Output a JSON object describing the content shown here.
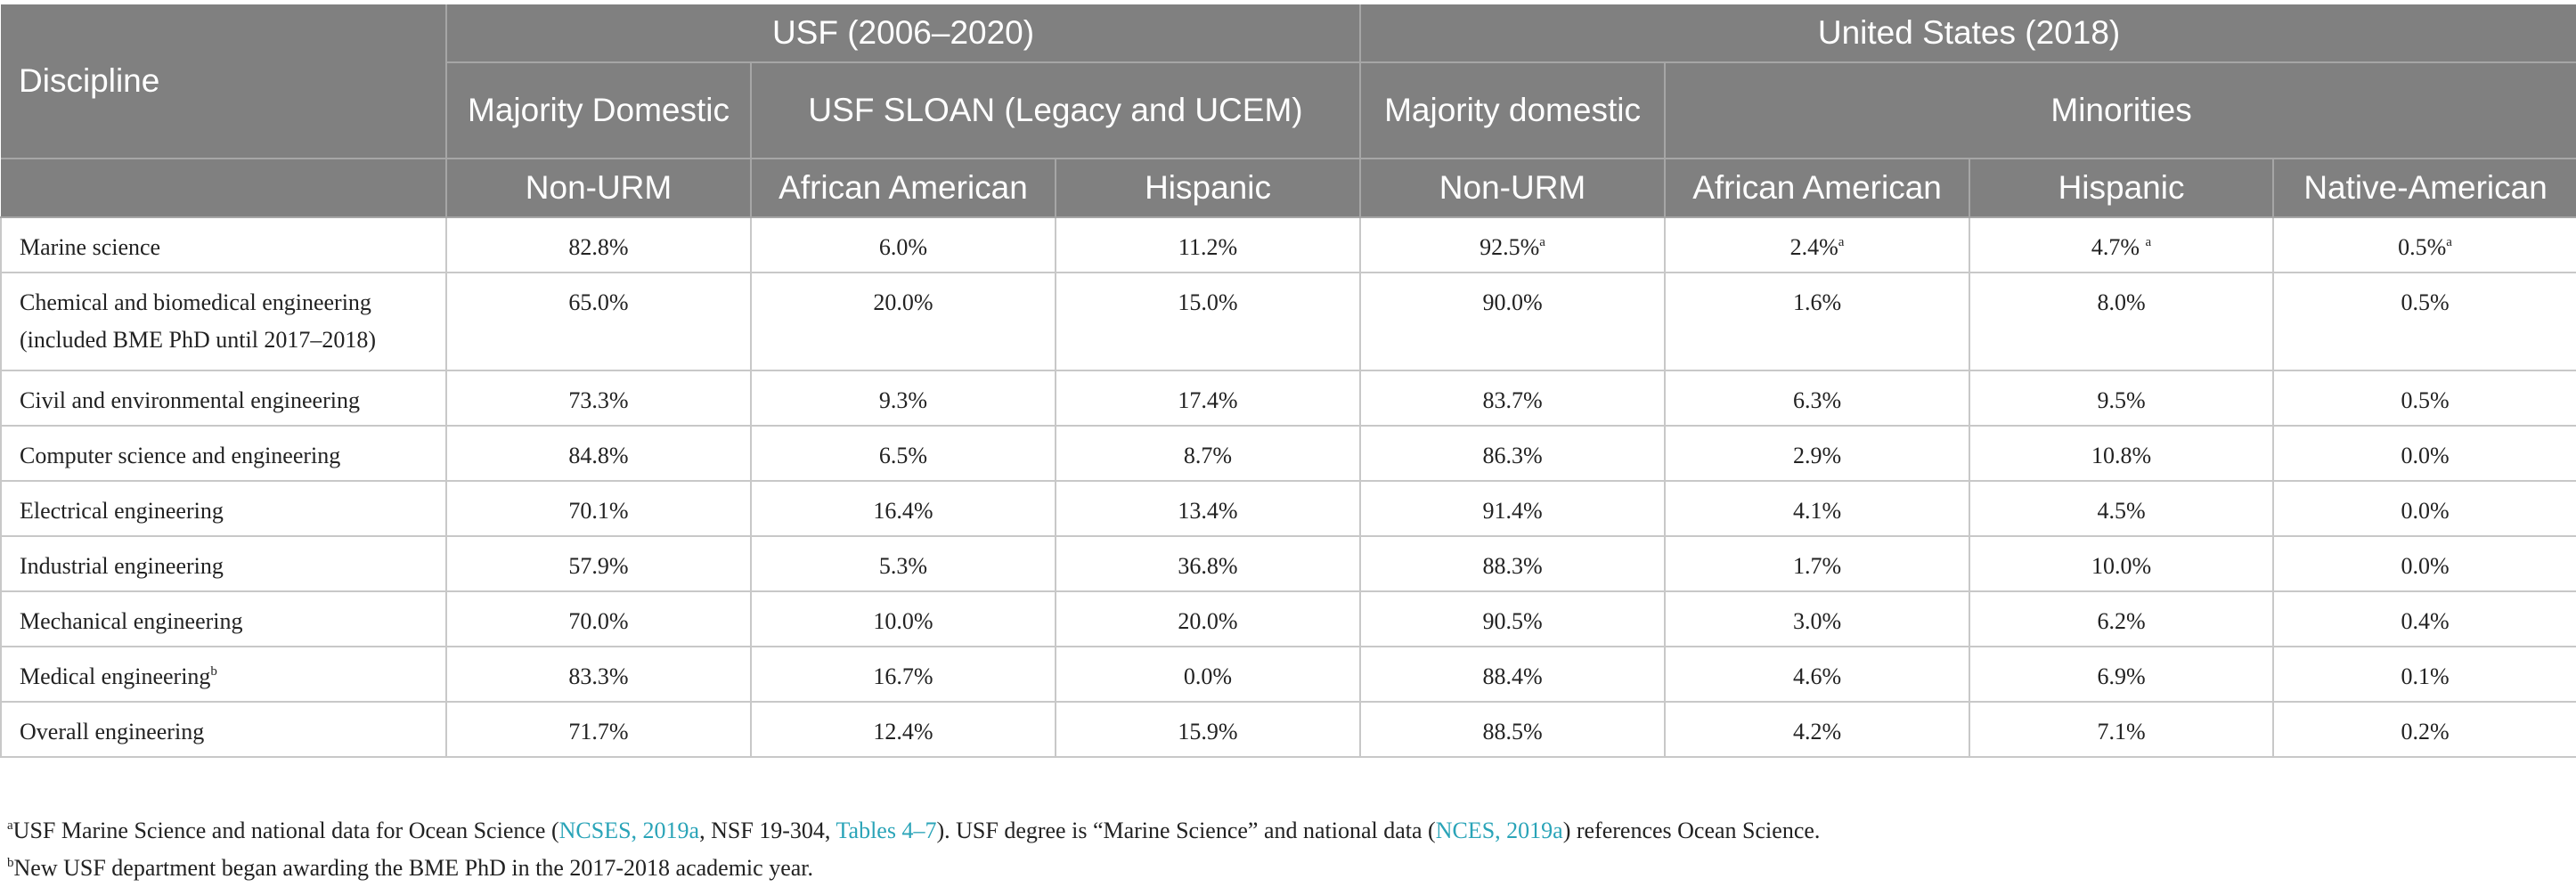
{
  "header": {
    "discipline": "Discipline",
    "group_usf": "USF (2006–2020)",
    "group_us": "United States (2018)",
    "usf_majority": "Majority Domestic",
    "usf_sloan": "USF SLOAN (Legacy and UCEM)",
    "us_majority": "Majority domestic",
    "us_minorities": "Minorities",
    "sub": [
      "Non-URM",
      "African American",
      "Hispanic",
      "Non-URM",
      "African American",
      "Hispanic",
      "Native-American"
    ]
  },
  "rows": [
    {
      "discipline": "Marine science",
      "sup": "",
      "values": [
        "82.8%",
        "6.0%",
        "11.2%",
        "92.5%",
        "2.4%",
        "4.7% ",
        "0.5%"
      ],
      "value_sups": [
        "",
        "",
        "",
        "a",
        "a",
        "a",
        "a"
      ]
    },
    {
      "discipline": "Chemical and biomedical engineering",
      "line2": "(included BME PhD until 2017–2018)",
      "values": [
        "65.0%",
        "20.0%",
        "15.0%",
        "90.0%",
        "1.6%",
        "8.0%",
        "0.5%"
      ]
    },
    {
      "discipline": "Civil and environmental engineering",
      "values": [
        "73.3%",
        "9.3%",
        "17.4%",
        "83.7%",
        "6.3%",
        "9.5%",
        "0.5%"
      ]
    },
    {
      "discipline": "Computer science and engineering",
      "values": [
        "84.8%",
        "6.5%",
        "8.7%",
        "86.3%",
        "2.9%",
        "10.8%",
        "0.0%"
      ]
    },
    {
      "discipline": "Electrical engineering",
      "values": [
        "70.1%",
        "16.4%",
        "13.4%",
        "91.4%",
        "4.1%",
        "4.5%",
        "0.0%"
      ]
    },
    {
      "discipline": "Industrial engineering",
      "values": [
        "57.9%",
        "5.3%",
        "36.8%",
        "88.3%",
        "1.7%",
        "10.0%",
        "0.0%"
      ]
    },
    {
      "discipline": "Mechanical engineering",
      "values": [
        "70.0%",
        "10.0%",
        "20.0%",
        "90.5%",
        "3.0%",
        "6.2%",
        "0.4%"
      ]
    },
    {
      "discipline": "Medical engineering",
      "sup": "b",
      "values": [
        "83.3%",
        "16.7%",
        "0.0%",
        "88.4%",
        "4.6%",
        "6.9%",
        "0.1%"
      ]
    },
    {
      "discipline": "Overall engineering",
      "values": [
        "71.7%",
        "12.4%",
        "15.9%",
        "88.5%",
        "4.2%",
        "7.1%",
        "0.2%"
      ]
    }
  ],
  "footnotes": {
    "a": {
      "marker": "a",
      "t1": "USF Marine Science and national data for Ocean Science (",
      "link1": "NCSES, 2019a",
      "t2": ", NSF 19-304, ",
      "link2": "Tables 4–7",
      "t3": "). USF degree is “Marine Science” and national data (",
      "link3": "NCES, 2019a",
      "t4": ") references Ocean Science."
    },
    "b": {
      "marker": "b",
      "text": "New USF department began awarding the BME PhD in the 2017-2018 academic year."
    }
  },
  "colors": {
    "header_bg": "#808080",
    "link": "#2aa4b8",
    "grid": "#c8c8c8"
  }
}
